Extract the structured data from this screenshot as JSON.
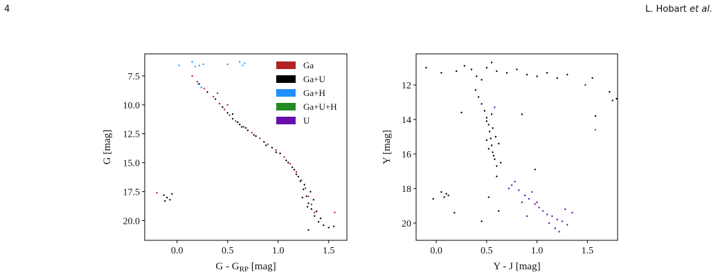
{
  "header": {
    "page_number": "4",
    "author_name": "L. Hobart",
    "author_suffix": "et al."
  },
  "legend": [
    {
      "label": "Ga",
      "color": "#b22222"
    },
    {
      "label": "Ga+U",
      "color": "#000000"
    },
    {
      "label": "Ga+H",
      "color": "#1e90ff"
    },
    {
      "label": "Ga+U+H",
      "color": "#228b22"
    },
    {
      "label": "U",
      "color": "#6a0dad"
    }
  ],
  "chart_data": [
    {
      "type": "scatter",
      "title": "",
      "xlabel": "G - G",
      "xlabel_sub": "RP",
      "xlabel_unit": " [mag]",
      "ylabel": "G [mag]",
      "xlim": [
        -0.32,
        1.68
      ],
      "ylim": [
        21.7,
        5.6
      ],
      "y_inverted": true,
      "xticks": [
        {
          "v": 0.0,
          "label": "0.0"
        },
        {
          "v": 0.5,
          "label": "0.5"
        },
        {
          "v": 1.0,
          "label": "1.0"
        },
        {
          "v": 1.5,
          "label": "1.5"
        }
      ],
      "yticks": [
        {
          "v": 7.5,
          "label": "7.5"
        },
        {
          "v": 10.0,
          "label": "10.0"
        },
        {
          "v": 12.5,
          "label": "12.5"
        },
        {
          "v": 15.0,
          "label": "15.0"
        },
        {
          "v": 17.5,
          "label": "17.5"
        },
        {
          "v": 20.0,
          "label": "20.0"
        }
      ],
      "series": [
        {
          "name": "Ga",
          "color": "#b22222",
          "points": [
            [
              0.15,
              7.5
            ],
            [
              0.2,
              8.0
            ],
            [
              0.27,
              8.6
            ],
            [
              0.36,
              9.3
            ],
            [
              0.42,
              9.9
            ],
            [
              0.47,
              10.4
            ],
            [
              0.52,
              10.9
            ],
            [
              0.58,
              11.4
            ],
            [
              0.66,
              11.9
            ],
            [
              0.74,
              12.4
            ],
            [
              0.82,
              12.9
            ],
            [
              0.9,
              13.4
            ],
            [
              0.98,
              13.9
            ],
            [
              1.06,
              14.5
            ],
            [
              1.12,
              15.1
            ],
            [
              1.18,
              15.8
            ],
            [
              1.23,
              16.5
            ],
            [
              1.27,
              17.2
            ],
            [
              1.3,
              17.9
            ],
            [
              1.33,
              18.6
            ],
            [
              1.36,
              19.3
            ],
            [
              1.56,
              19.3
            ],
            [
              -0.2,
              17.6
            ],
            [
              0.4,
              9.0
            ],
            [
              0.5,
              10.0
            ]
          ]
        },
        {
          "name": "Ga+U",
          "color": "#000000",
          "points": [
            [
              0.22,
              8.2
            ],
            [
              0.3,
              8.9
            ],
            [
              0.38,
              9.5
            ],
            [
              0.45,
              10.2
            ],
            [
              0.5,
              10.7
            ],
            [
              0.55,
              11.2
            ],
            [
              0.62,
              11.7
            ],
            [
              0.7,
              12.2
            ],
            [
              0.78,
              12.7
            ],
            [
              0.86,
              13.2
            ],
            [
              0.94,
              13.7
            ],
            [
              1.02,
              14.2
            ],
            [
              1.08,
              14.8
            ],
            [
              1.14,
              15.4
            ],
            [
              1.18,
              16.0
            ],
            [
              1.22,
              16.6
            ],
            [
              1.25,
              17.3
            ],
            [
              1.28,
              17.9
            ],
            [
              1.3,
              18.5
            ],
            [
              1.33,
              19.0
            ],
            [
              1.36,
              19.6
            ],
            [
              1.4,
              20.1
            ],
            [
              1.45,
              20.4
            ],
            [
              1.5,
              20.6
            ],
            [
              1.55,
              20.5
            ],
            [
              1.3,
              20.8
            ],
            [
              1.2,
              16.2
            ],
            [
              1.26,
              16.9
            ],
            [
              1.32,
              17.5
            ],
            [
              1.35,
              18.2
            ],
            [
              1.24,
              18.0
            ],
            [
              1.29,
              18.8
            ],
            [
              1.38,
              19.2
            ],
            [
              1.42,
              19.8
            ],
            [
              1.16,
              15.6
            ],
            [
              1.1,
              15.0
            ],
            [
              0.98,
              14.1
            ],
            [
              0.88,
              13.5
            ],
            [
              0.76,
              12.6
            ],
            [
              0.64,
              11.9
            ],
            [
              -0.13,
              17.8
            ],
            [
              -0.1,
              18.0
            ],
            [
              -0.07,
              18.2
            ],
            [
              -0.05,
              17.7
            ],
            [
              -0.12,
              18.3
            ],
            [
              0.55,
              10.8
            ],
            [
              0.6,
              11.5
            ],
            [
              0.68,
              12.0
            ]
          ]
        },
        {
          "name": "Ga+H",
          "color": "#1e90ff",
          "points": [
            [
              0.02,
              6.6
            ],
            [
              0.15,
              6.3
            ],
            [
              0.18,
              6.7
            ],
            [
              0.22,
              6.6
            ],
            [
              0.26,
              6.5
            ],
            [
              0.5,
              6.5
            ],
            [
              0.62,
              6.3
            ],
            [
              0.65,
              6.6
            ],
            [
              0.67,
              6.4
            ],
            [
              0.21,
              8.2
            ],
            [
              0.24,
              8.5
            ]
          ]
        }
      ]
    },
    {
      "type": "scatter",
      "title": "",
      "xlabel": "Y - J [mag]",
      "ylabel": "Y [mag]",
      "xlim": [
        -0.2,
        1.8
      ],
      "ylim": [
        21.0,
        10.2
      ],
      "y_inverted": true,
      "xticks": [
        {
          "v": 0.0,
          "label": "0.0"
        },
        {
          "v": 0.5,
          "label": "0.5"
        },
        {
          "v": 1.0,
          "label": "1.0"
        },
        {
          "v": 1.5,
          "label": "1.5"
        }
      ],
      "yticks": [
        {
          "v": 12,
          "label": "12"
        },
        {
          "v": 14,
          "label": "14"
        },
        {
          "v": 16,
          "label": "16"
        },
        {
          "v": 18,
          "label": "18"
        },
        {
          "v": 20,
          "label": "20"
        }
      ],
      "series": [
        {
          "name": "Ga+U",
          "color": "#000000",
          "points": [
            [
              -0.1,
              11.0
            ],
            [
              0.05,
              11.3
            ],
            [
              0.2,
              11.2
            ],
            [
              0.28,
              10.9
            ],
            [
              0.35,
              11.1
            ],
            [
              0.4,
              11.5
            ],
            [
              0.45,
              11.7
            ],
            [
              0.5,
              11.0
            ],
            [
              0.55,
              10.7
            ],
            [
              0.6,
              11.2
            ],
            [
              0.7,
              11.3
            ],
            [
              0.8,
              11.1
            ],
            [
              0.9,
              11.4
            ],
            [
              1.0,
              11.5
            ],
            [
              1.1,
              11.3
            ],
            [
              1.2,
              11.6
            ],
            [
              1.3,
              11.4
            ],
            [
              1.55,
              11.6
            ],
            [
              1.72,
              12.4
            ],
            [
              1.75,
              12.9
            ],
            [
              1.79,
              12.8
            ],
            [
              0.39,
              12.3
            ],
            [
              0.42,
              12.7
            ],
            [
              0.45,
              13.1
            ],
            [
              0.48,
              13.5
            ],
            [
              0.5,
              13.9
            ],
            [
              0.52,
              14.3
            ],
            [
              0.53,
              14.7
            ],
            [
              0.54,
              15.1
            ],
            [
              0.55,
              15.5
            ],
            [
              0.56,
              15.9
            ],
            [
              0.58,
              16.3
            ],
            [
              0.6,
              16.7
            ],
            [
              0.55,
              13.7
            ],
            [
              0.5,
              14.1
            ],
            [
              0.56,
              14.5
            ],
            [
              0.59,
              15.0
            ],
            [
              0.62,
              15.4
            ],
            [
              0.5,
              15.2
            ],
            [
              0.52,
              15.7
            ],
            [
              0.57,
              16.1
            ],
            [
              0.64,
              16.5
            ],
            [
              0.25,
              13.6
            ],
            [
              0.85,
              13.7
            ],
            [
              1.58,
              13.8
            ],
            [
              0.05,
              18.2
            ],
            [
              0.1,
              18.3
            ],
            [
              0.08,
              18.5
            ],
            [
              -0.03,
              18.6
            ],
            [
              0.12,
              18.4
            ],
            [
              0.52,
              18.5
            ],
            [
              0.6,
              17.3
            ],
            [
              0.45,
              19.9
            ],
            [
              0.62,
              19.3
            ],
            [
              0.98,
              16.9
            ],
            [
              0.18,
              19.4
            ]
          ]
        },
        {
          "name": "U",
          "color": "#6a0dad",
          "points": [
            [
              0.75,
              17.8
            ],
            [
              0.82,
              18.1
            ],
            [
              0.88,
              18.4
            ],
            [
              0.92,
              18.6
            ],
            [
              0.98,
              18.9
            ],
            [
              1.02,
              19.1
            ],
            [
              1.06,
              19.3
            ],
            [
              1.1,
              19.5
            ],
            [
              1.15,
              19.6
            ],
            [
              1.2,
              19.8
            ],
            [
              1.25,
              19.9
            ],
            [
              1.3,
              20.1
            ],
            [
              1.35,
              19.4
            ],
            [
              0.95,
              18.2
            ],
            [
              1.0,
              18.8
            ],
            [
              0.85,
              18.8
            ],
            [
              1.12,
              20.0
            ],
            [
              1.18,
              20.3
            ],
            [
              1.22,
              20.5
            ],
            [
              1.28,
              19.2
            ],
            [
              0.9,
              19.6
            ],
            [
              0.72,
              18.0
            ],
            [
              0.78,
              17.6
            ],
            [
              1.48,
              12.0
            ],
            [
              0.58,
              13.3
            ]
          ]
        },
        {
          "name": "Ga+U+H",
          "color": "#228b22",
          "points": [
            [
              1.58,
              14.6
            ]
          ]
        }
      ]
    }
  ]
}
